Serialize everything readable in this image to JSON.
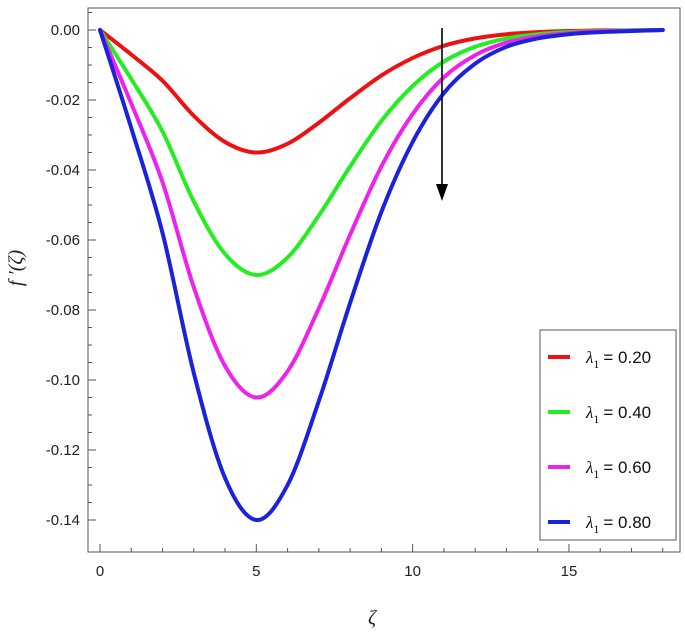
{
  "chart_data": {
    "type": "line",
    "title": "",
    "xlabel": "ζ",
    "ylabel": "f ′(ζ)",
    "xlim": [
      0,
      18.2
    ],
    "ylim": [
      -0.148,
      0.008
    ],
    "xticks": [
      0,
      5,
      10,
      15
    ],
    "yticks": [
      0.0,
      -0.02,
      -0.04,
      -0.06,
      -0.08,
      -0.1,
      -0.12,
      -0.14
    ],
    "ytick_labels": [
      "0.00",
      "-0.02",
      "-0.04",
      "-0.06",
      "-0.08",
      "-0.10",
      "-0.12",
      "-0.14"
    ],
    "grid": false,
    "legend_position": "bottom-right",
    "annotation": "arrow pointing downward near ζ ≈ 11 (increasing λ1)",
    "x": [
      0,
      1,
      2,
      3,
      4,
      5,
      6,
      7,
      8,
      9,
      10,
      11,
      12,
      13,
      14,
      15,
      16,
      17,
      18
    ],
    "series": [
      {
        "name": "λ1 = 0.20",
        "symbol": "λ",
        "subscript": "1",
        "value_text": "= 0.20",
        "color": "#ee1111",
        "values": [
          0,
          -0.007,
          -0.0145,
          -0.0245,
          -0.032,
          -0.035,
          -0.0325,
          -0.0265,
          -0.0195,
          -0.013,
          -0.008,
          -0.0045,
          -0.0024,
          -0.0012,
          -0.0006,
          -0.0003,
          -0.0001,
          -0.0001,
          0
        ]
      },
      {
        "name": "λ1 = 0.40",
        "symbol": "λ",
        "subscript": "1",
        "value_text": "= 0.40",
        "color": "#22ee22",
        "values": [
          0,
          -0.014,
          -0.029,
          -0.049,
          -0.064,
          -0.07,
          -0.065,
          -0.053,
          -0.039,
          -0.026,
          -0.016,
          -0.009,
          -0.0048,
          -0.0024,
          -0.0012,
          -0.0006,
          -0.0003,
          -0.0001,
          0
        ]
      },
      {
        "name": "λ1 = 0.60",
        "symbol": "λ",
        "subscript": "1",
        "value_text": "= 0.60",
        "color": "#ee22ee",
        "values": [
          0,
          -0.021,
          -0.0435,
          -0.0735,
          -0.096,
          -0.105,
          -0.0975,
          -0.0795,
          -0.0585,
          -0.039,
          -0.024,
          -0.0135,
          -0.0072,
          -0.0036,
          -0.0018,
          -0.0009,
          -0.0004,
          -0.0002,
          0
        ]
      },
      {
        "name": "λ1 = 0.80",
        "symbol": "λ",
        "subscript": "1",
        "value_text": "= 0.80",
        "color": "#1a22dd",
        "values": [
          0,
          -0.028,
          -0.058,
          -0.098,
          -0.128,
          -0.14,
          -0.13,
          -0.106,
          -0.078,
          -0.052,
          -0.032,
          -0.018,
          -0.0096,
          -0.0048,
          -0.0024,
          -0.0012,
          -0.0006,
          -0.0003,
          0
        ]
      }
    ]
  }
}
